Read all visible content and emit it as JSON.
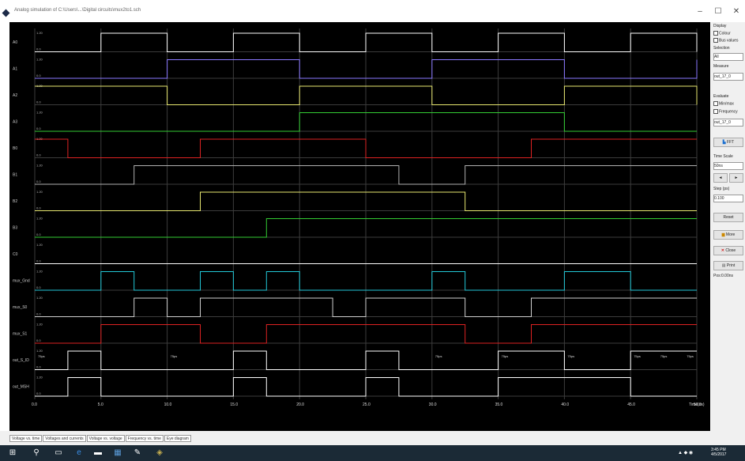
{
  "window": {
    "title": "Analog simulation of C:\\Users\\...\\Digital circuits\\mux2to1.sch",
    "minimize_glyph": "–",
    "maximize_glyph": "☐",
    "close_glyph": "✕"
  },
  "signals": [
    {
      "label": "A0",
      "color": "#ffffff"
    },
    {
      "label": "A1",
      "color": "#8a78ff"
    },
    {
      "label": "A2",
      "color": "#e8e870"
    },
    {
      "label": "A3",
      "color": "#33cc33"
    },
    {
      "label": "B0",
      "color": "#dd2222"
    },
    {
      "label": "B1",
      "color": "#b0b0b0"
    },
    {
      "label": "B2",
      "color": "#e8e870"
    },
    {
      "label": "B3",
      "color": "#33cc33"
    },
    {
      "label": "C0",
      "color": "#ffffff"
    },
    {
      "label": "mux_Gnd",
      "color": "#22c8d8"
    },
    {
      "label": "mux_S0",
      "color": "#cfcfcf"
    },
    {
      "label": "mux_S1",
      "color": "#dd2222"
    },
    {
      "label": "out_S_ID",
      "color": "#ffffff"
    },
    {
      "label": "out_MSH",
      "color": "#ffffff"
    }
  ],
  "levels": {
    "high": "1.20",
    "low": "0.0"
  },
  "time_axis": {
    "ticks": [
      "0.0",
      "5.0",
      "10.0",
      "15.0",
      "20.0",
      "25.0",
      "30.0",
      "35.0",
      "40.0",
      "45.0",
      "50.0"
    ],
    "unit": "Time(ns)"
  },
  "delay_labels": [
    "75ps",
    "75ps",
    "75ps",
    "75ps",
    "75ps",
    "75ps",
    "75ps",
    "75ps"
  ],
  "right_panel": {
    "display_header": "Display",
    "opt_colour": "Colour",
    "opt_bus": "Bus values",
    "selection_header": "Selection",
    "sel_value": "All",
    "measure_header": "Measure",
    "meas_value": "out_17_0",
    "evaluate_header": "Evaluate",
    "opt_min": "Min/max",
    "opt_freq": "Frequency",
    "eval_value": "out_17_0",
    "fft_label": "FFT",
    "time_scale_header": "Time Scale",
    "time_scale_value": "50ns",
    "nav_left": "◄",
    "nav_right": "►",
    "step_header": "Step (ps)",
    "step_value": "0.100",
    "reset_label": "Reset",
    "more_label": "More",
    "close_label": "Close",
    "print_label": "Print",
    "status": "Pos:0.00ns"
  },
  "tabs": [
    "Voltage vs. time",
    "Voltages and currents",
    "Voltage vs. voltage",
    "Frequency vs. time",
    "Eye diagram"
  ],
  "taskbar": {
    "time": "3:45 PM",
    "date": "4/5/2017"
  },
  "colors": {
    "background": "#000000",
    "grid": "#3c3c3c",
    "axis_text": "#dddddd"
  }
}
